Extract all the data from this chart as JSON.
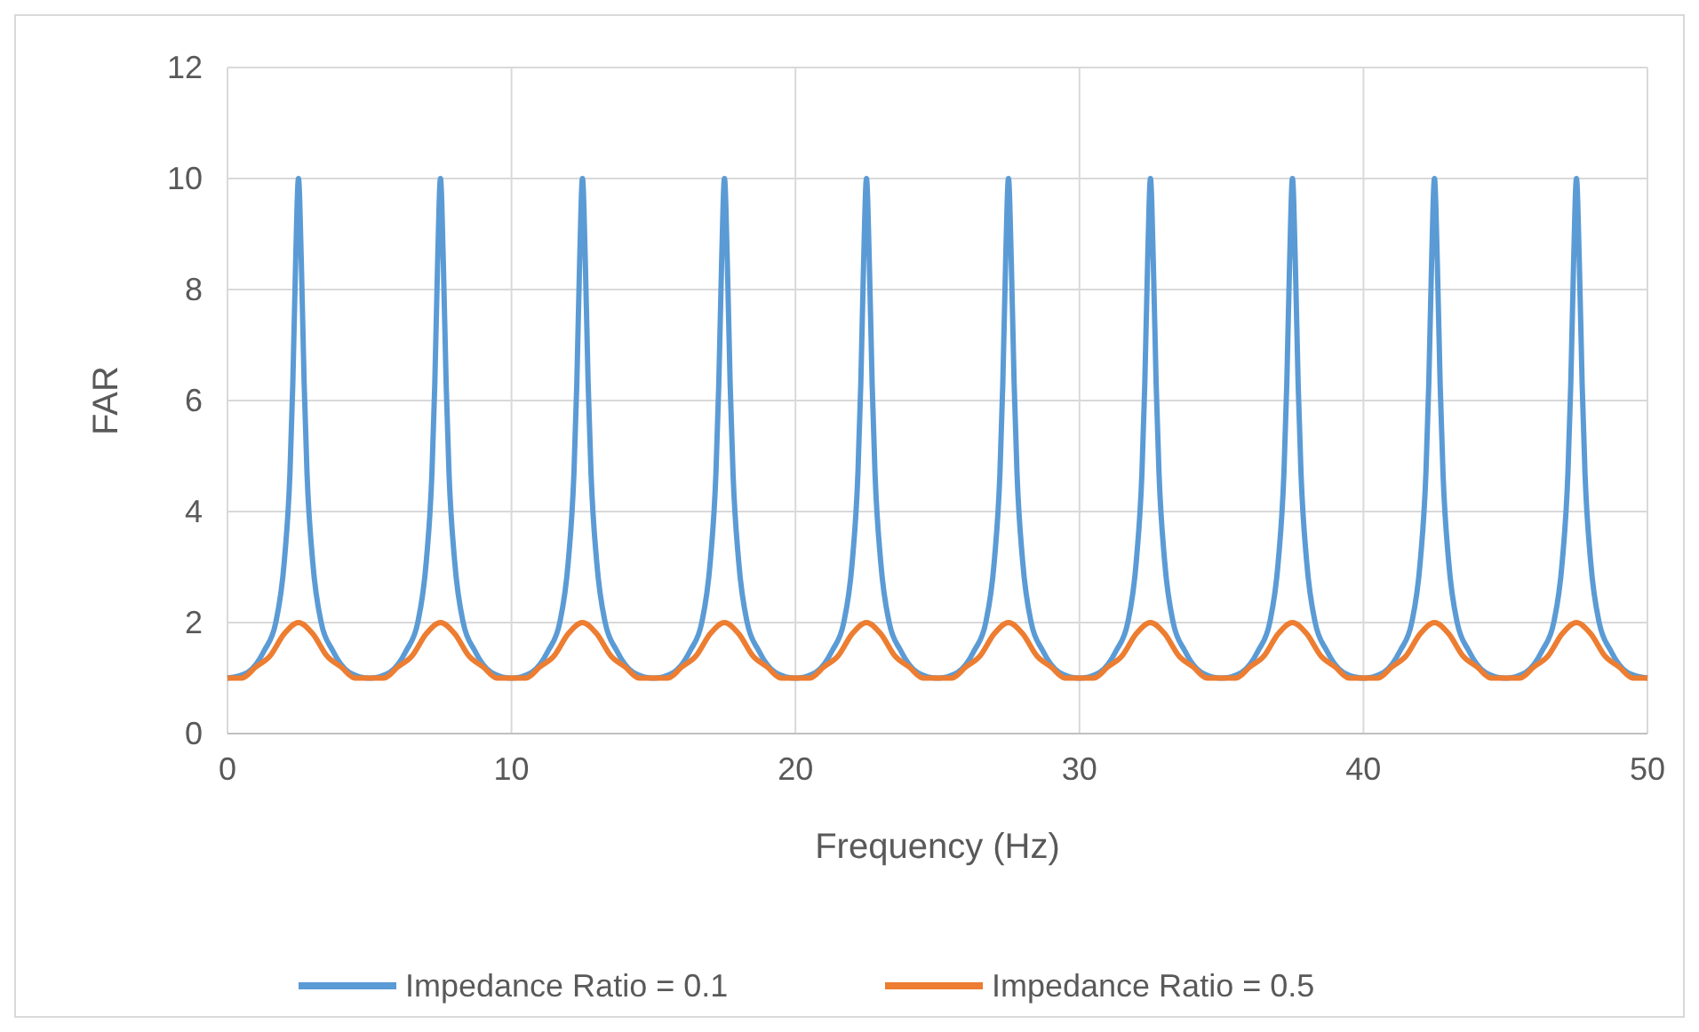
{
  "chart_data": {
    "type": "line",
    "xlabel": "Frequency (Hz)",
    "ylabel": "FAR",
    "xlim": [
      0,
      50
    ],
    "xticks": [
      0,
      10,
      20,
      30,
      40,
      50
    ],
    "ylim": [
      0,
      12
    ],
    "yticks": [
      0,
      2,
      4,
      6,
      8,
      10,
      12
    ],
    "grid": true,
    "legend": "bottom",
    "marker": "none",
    "line_style": "solid",
    "series": [
      {
        "name": "Impedance Ratio = 0.1",
        "color": "#5b9bd5",
        "x": [
          0,
          0.7,
          1.3,
          1.7,
          2,
          2.2,
          2.3,
          2.4,
          2.5,
          2.6,
          2.7,
          2.8,
          3,
          3.3,
          3.7,
          4.3,
          5,
          5.7,
          6.3,
          6.7,
          7,
          7.2,
          7.3,
          7.4,
          7.5,
          7.6,
          7.7,
          7.8,
          8,
          8.3,
          8.7,
          9.3,
          10,
          10.7,
          11.3,
          11.7,
          12,
          12.2,
          12.3,
          12.4,
          12.5,
          12.6,
          12.7,
          12.8,
          13,
          13.3,
          13.7,
          14.3,
          15,
          15.7,
          16.3,
          16.7,
          17,
          17.2,
          17.3,
          17.4,
          17.5,
          17.6,
          17.7,
          17.8,
          18,
          18.3,
          18.7,
          19.3,
          20,
          20.7,
          21.3,
          21.7,
          22,
          22.2,
          22.3,
          22.4,
          22.5,
          22.6,
          22.7,
          22.8,
          23,
          23.3,
          23.7,
          24.3,
          25,
          25.7,
          26.3,
          26.7,
          27,
          27.2,
          27.3,
          27.4,
          27.5,
          27.6,
          27.7,
          27.8,
          28,
          28.3,
          28.7,
          29.3,
          30,
          30.7,
          31.3,
          31.7,
          32,
          32.2,
          32.3,
          32.4,
          32.5,
          32.6,
          32.7,
          32.8,
          33,
          33.3,
          33.7,
          34.3,
          35,
          35.7,
          36.3,
          36.7,
          37,
          37.2,
          37.3,
          37.4,
          37.5,
          37.6,
          37.7,
          37.8,
          38,
          38.3,
          38.7,
          39.3,
          40,
          40.7,
          41.3,
          41.7,
          42,
          42.2,
          42.3,
          42.4,
          42.5,
          42.6,
          42.7,
          42.8,
          43,
          43.3,
          43.7,
          44.3,
          45,
          45.7,
          46.3,
          46.7,
          47,
          47.2,
          47.3,
          47.4,
          47.5,
          47.6,
          47.7,
          47.8,
          48,
          48.3,
          48.7,
          49.3,
          50
        ],
        "values": [
          1,
          1.1,
          1.5,
          2,
          3.1,
          4.7,
          6.3,
          8.5,
          10,
          8.5,
          6.3,
          4.7,
          3.1,
          2,
          1.5,
          1.1,
          1,
          1.1,
          1.5,
          2,
          3.1,
          4.7,
          6.3,
          8.5,
          10,
          8.5,
          6.3,
          4.7,
          3.1,
          2,
          1.5,
          1.1,
          1,
          1.1,
          1.5,
          2,
          3.1,
          4.7,
          6.3,
          8.5,
          10,
          8.5,
          6.3,
          4.7,
          3.1,
          2,
          1.5,
          1.1,
          1,
          1.1,
          1.5,
          2,
          3.1,
          4.7,
          6.3,
          8.5,
          10,
          8.5,
          6.3,
          4.7,
          3.1,
          2,
          1.5,
          1.1,
          1,
          1.1,
          1.5,
          2,
          3.1,
          4.7,
          6.3,
          8.5,
          10,
          8.5,
          6.3,
          4.7,
          3.1,
          2,
          1.5,
          1.1,
          1,
          1.1,
          1.5,
          2,
          3.1,
          4.7,
          6.3,
          8.5,
          10,
          8.5,
          6.3,
          4.7,
          3.1,
          2,
          1.5,
          1.1,
          1,
          1.1,
          1.5,
          2,
          3.1,
          4.7,
          6.3,
          8.5,
          10,
          8.5,
          6.3,
          4.7,
          3.1,
          2,
          1.5,
          1.1,
          1,
          1.1,
          1.5,
          2,
          3.1,
          4.7,
          6.3,
          8.5,
          10,
          8.5,
          6.3,
          4.7,
          3.1,
          2,
          1.5,
          1.1,
          1,
          1.1,
          1.5,
          2,
          3.1,
          4.7,
          6.3,
          8.5,
          10,
          8.5,
          6.3,
          4.7,
          3.1,
          2,
          1.5,
          1.1,
          1,
          1.1,
          1.5,
          2,
          3.1,
          4.7,
          6.3,
          8.5,
          10,
          8.5,
          6.3,
          4.7,
          3.1,
          2,
          1.5,
          1.1,
          1
        ]
      },
      {
        "name": "Impedance Ratio = 0.5",
        "color": "#ed7d31",
        "x": [
          0,
          0.5,
          1,
          1.5,
          2,
          2.5,
          3,
          3.5,
          4,
          4.5,
          5,
          5.5,
          6,
          6.5,
          7,
          7.5,
          8,
          8.5,
          9,
          9.5,
          10,
          10.5,
          11,
          11.5,
          12,
          12.5,
          13,
          13.5,
          14,
          14.5,
          15,
          15.5,
          16,
          16.5,
          17,
          17.5,
          18,
          18.5,
          19,
          19.5,
          20,
          20.5,
          21,
          21.5,
          22,
          22.5,
          23,
          23.5,
          24,
          24.5,
          25,
          25.5,
          26,
          26.5,
          27,
          27.5,
          28,
          28.5,
          29,
          29.5,
          30,
          30.5,
          31,
          31.5,
          32,
          32.5,
          33,
          33.5,
          34,
          34.5,
          35,
          35.5,
          36,
          36.5,
          37,
          37.5,
          38,
          38.5,
          39,
          39.5,
          40,
          40.5,
          41,
          41.5,
          42,
          42.5,
          43,
          43.5,
          44,
          44.5,
          45,
          45.5,
          46,
          46.5,
          47,
          47.5,
          48,
          48.5,
          49,
          49.5,
          50
        ],
        "values": [
          1,
          1.0,
          1.2,
          1.4,
          1.8,
          2,
          1.8,
          1.4,
          1.2,
          1.0,
          1,
          1.0,
          1.2,
          1.4,
          1.8,
          2,
          1.8,
          1.4,
          1.2,
          1.0,
          1,
          1.0,
          1.2,
          1.4,
          1.8,
          2,
          1.8,
          1.4,
          1.2,
          1.0,
          1,
          1.0,
          1.2,
          1.4,
          1.8,
          2,
          1.8,
          1.4,
          1.2,
          1.0,
          1,
          1.0,
          1.2,
          1.4,
          1.8,
          2,
          1.8,
          1.4,
          1.2,
          1.0,
          1,
          1.0,
          1.2,
          1.4,
          1.8,
          2,
          1.8,
          1.4,
          1.2,
          1.0,
          1,
          1.0,
          1.2,
          1.4,
          1.8,
          2,
          1.8,
          1.4,
          1.2,
          1.0,
          1,
          1.0,
          1.2,
          1.4,
          1.8,
          2,
          1.8,
          1.4,
          1.2,
          1.0,
          1,
          1.0,
          1.2,
          1.4,
          1.8,
          2,
          1.8,
          1.4,
          1.2,
          1.0,
          1,
          1.0,
          1.2,
          1.4,
          1.8,
          2,
          1.8,
          1.4,
          1.2,
          1.0,
          1
        ]
      }
    ]
  }
}
